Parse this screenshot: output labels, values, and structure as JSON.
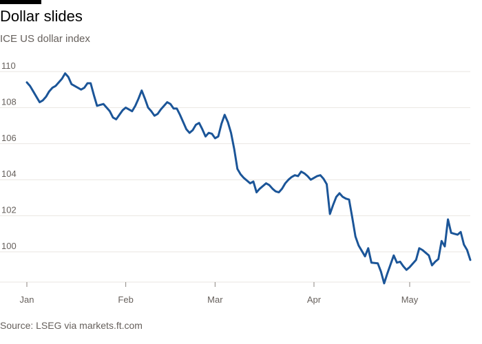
{
  "header": {
    "title": "Dollar slides",
    "subtitle": "ICE US dollar index"
  },
  "footer": {
    "source": "Source: LSEG via markets.ft.com"
  },
  "colors": {
    "line": "#1b5598",
    "grid": "#e9e6e1",
    "axis": "#8c8681"
  },
  "chart_data": {
    "type": "line",
    "title": "Dollar slides",
    "subtitle": "ICE US dollar index",
    "xlabel": "",
    "ylabel": "",
    "x_ticks": [
      {
        "label": "Jan",
        "date": "2025-01-01"
      },
      {
        "label": "Feb",
        "date": "2025-02-01"
      },
      {
        "label": "Mar",
        "date": "2025-03-01"
      },
      {
        "label": "Apr",
        "date": "2025-04-01"
      },
      {
        "label": "May",
        "date": "2025-05-01"
      }
    ],
    "y_ticks": [
      100,
      102,
      104,
      106,
      108,
      110
    ],
    "xlim": [
      "2025-01-01",
      "2025-05-20"
    ],
    "ylim": [
      98.2,
      110.3
    ],
    "grid": true,
    "series": [
      {
        "name": "",
        "x": [
          "2025-01-01",
          "2025-01-02",
          "2025-01-03",
          "2025-01-04",
          "2025-01-05",
          "2025-01-06",
          "2025-01-07",
          "2025-01-08",
          "2025-01-09",
          "2025-01-10",
          "2025-01-11",
          "2025-01-12",
          "2025-01-13",
          "2025-01-14",
          "2025-01-15",
          "2025-01-16",
          "2025-01-17",
          "2025-01-18",
          "2025-01-19",
          "2025-01-20",
          "2025-01-21",
          "2025-01-22",
          "2025-01-23",
          "2025-01-24",
          "2025-01-25",
          "2025-01-26",
          "2025-01-27",
          "2025-01-28",
          "2025-01-29",
          "2025-01-30",
          "2025-01-31",
          "2025-02-01",
          "2025-02-02",
          "2025-02-03",
          "2025-02-04",
          "2025-02-05",
          "2025-02-06",
          "2025-02-07",
          "2025-02-08",
          "2025-02-09",
          "2025-02-10",
          "2025-02-11",
          "2025-02-12",
          "2025-02-13",
          "2025-02-14",
          "2025-02-15",
          "2025-02-16",
          "2025-02-17",
          "2025-02-18",
          "2025-02-19",
          "2025-02-20",
          "2025-02-21",
          "2025-02-22",
          "2025-02-23",
          "2025-02-24",
          "2025-02-25",
          "2025-02-26",
          "2025-02-27",
          "2025-02-28",
          "2025-03-01",
          "2025-03-02",
          "2025-03-03",
          "2025-03-04",
          "2025-03-05",
          "2025-03-06",
          "2025-03-07",
          "2025-03-08",
          "2025-03-09",
          "2025-03-10",
          "2025-03-11",
          "2025-03-12",
          "2025-03-13",
          "2025-03-14",
          "2025-03-15",
          "2025-03-16",
          "2025-03-17",
          "2025-03-18",
          "2025-03-19",
          "2025-03-20",
          "2025-03-21",
          "2025-03-22",
          "2025-03-23",
          "2025-03-24",
          "2025-03-25",
          "2025-03-26",
          "2025-03-27",
          "2025-03-28",
          "2025-03-29",
          "2025-03-30",
          "2025-03-31",
          "2025-04-01",
          "2025-04-02",
          "2025-04-03",
          "2025-04-04",
          "2025-04-05",
          "2025-04-06",
          "2025-04-07",
          "2025-04-08",
          "2025-04-09",
          "2025-04-10",
          "2025-04-11",
          "2025-04-12",
          "2025-04-13",
          "2025-04-14",
          "2025-04-15",
          "2025-04-16",
          "2025-04-17",
          "2025-04-18",
          "2025-04-19",
          "2025-04-20",
          "2025-04-21",
          "2025-04-22",
          "2025-04-23",
          "2025-04-24",
          "2025-04-25",
          "2025-04-26",
          "2025-04-27",
          "2025-04-28",
          "2025-04-29",
          "2025-04-30",
          "2025-05-01",
          "2025-05-02",
          "2025-05-03",
          "2025-05-04",
          "2025-05-05",
          "2025-05-06",
          "2025-05-07",
          "2025-05-08",
          "2025-05-09",
          "2025-05-10",
          "2025-05-11",
          "2025-05-12",
          "2025-05-13",
          "2025-05-14",
          "2025-05-15",
          "2025-05-16",
          "2025-05-17",
          "2025-05-18",
          "2025-05-19",
          "2025-05-20"
        ],
        "values": [
          109.4,
          109.2,
          108.9,
          108.6,
          108.3,
          108.4,
          108.6,
          108.9,
          109.1,
          109.2,
          109.4,
          109.6,
          109.9,
          109.7,
          109.3,
          109.2,
          109.1,
          109.0,
          109.1,
          109.35,
          109.35,
          108.7,
          108.1,
          108.15,
          108.2,
          108.0,
          107.8,
          107.45,
          107.35,
          107.6,
          107.85,
          108.0,
          107.9,
          107.8,
          108.1,
          108.5,
          108.95,
          108.5,
          108.0,
          107.8,
          107.55,
          107.65,
          107.9,
          108.1,
          108.3,
          108.2,
          107.95,
          107.95,
          107.6,
          107.2,
          106.8,
          106.6,
          106.75,
          107.05,
          107.15,
          106.8,
          106.4,
          106.6,
          106.55,
          106.3,
          106.4,
          107.1,
          107.6,
          107.2,
          106.6,
          105.7,
          104.6,
          104.3,
          104.1,
          103.95,
          103.8,
          103.9,
          103.3,
          103.5,
          103.65,
          103.8,
          103.7,
          103.5,
          103.35,
          103.3,
          103.5,
          103.8,
          104.0,
          104.15,
          104.25,
          104.2,
          104.45,
          104.35,
          104.2,
          104.0,
          104.1,
          104.2,
          104.25,
          104.05,
          103.75,
          102.1,
          102.6,
          103.05,
          103.25,
          103.05,
          102.95,
          102.9,
          101.9,
          100.85,
          100.35,
          100.05,
          99.75,
          100.2,
          99.4,
          99.38,
          99.36,
          98.9,
          98.25,
          98.8,
          99.3,
          99.8,
          99.4,
          99.45,
          99.2,
          99.0,
          99.15,
          99.35,
          99.55,
          100.2,
          100.1,
          99.95,
          99.8,
          99.25,
          99.45,
          99.6,
          100.6,
          100.3,
          101.8,
          101.05,
          101.0,
          100.95,
          101.1,
          100.4,
          100.1,
          99.55
        ]
      }
    ]
  }
}
